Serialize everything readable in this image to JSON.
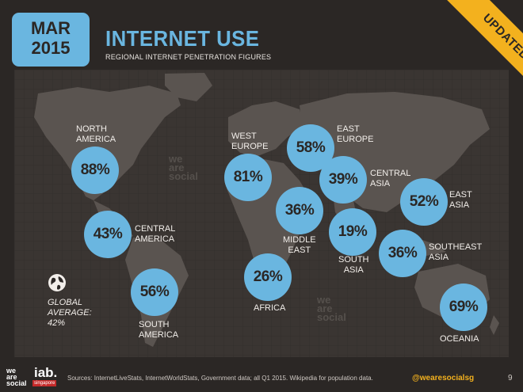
{
  "header": {
    "month": "MAR",
    "year": "2015",
    "title": "INTERNET USE",
    "subtitle": "REGIONAL INTERNET PENETRATION FIGURES",
    "ribbon": "UPDATED"
  },
  "regions": [
    {
      "id": "north-america",
      "name_line1": "NORTH",
      "name_line2": "AMERICA",
      "value": "88%"
    },
    {
      "id": "central-america",
      "name_line1": "CENTRAL",
      "name_line2": "AMERICA",
      "value": "43%"
    },
    {
      "id": "south-america",
      "name_line1": "SOUTH",
      "name_line2": "AMERICA",
      "value": "56%"
    },
    {
      "id": "west-europe",
      "name_line1": "WEST",
      "name_line2": "EUROPE",
      "value": "81%"
    },
    {
      "id": "east-europe",
      "name_line1": "EAST",
      "name_line2": "EUROPE",
      "value": "58%"
    },
    {
      "id": "central-asia",
      "name_line1": "CENTRAL",
      "name_line2": "ASIA",
      "value": "39%"
    },
    {
      "id": "middle-east",
      "name_line1": "MIDDLE",
      "name_line2": "EAST",
      "value": "36%"
    },
    {
      "id": "east-asia",
      "name_line1": "EAST",
      "name_line2": "ASIA",
      "value": "52%"
    },
    {
      "id": "south-asia",
      "name_line1": "SOUTH",
      "name_line2": "ASIA",
      "value": "19%"
    },
    {
      "id": "southeast-asia",
      "name_line1": "SOUTHEAST",
      "name_line2": "ASIA",
      "value": "36%"
    },
    {
      "id": "africa",
      "name_line1": "AFRICA",
      "name_line2": "",
      "value": "26%"
    },
    {
      "id": "oceania",
      "name_line1": "OCEANIA",
      "name_line2": "",
      "value": "69%"
    }
  ],
  "global": {
    "line1": "GLOBAL",
    "line2": "AVERAGE:",
    "value": "42%"
  },
  "watermark": {
    "line1": "we",
    "line2": "are",
    "line3": "social"
  },
  "footer": {
    "logo_line1": "we",
    "logo_line2": "are",
    "logo_line3": "social",
    "iab": "iab.",
    "iab_sub": "singapore",
    "sources": "Sources: InternetLiveStats, InternetWorldStats, Government data; all Q1 2015. Wikipedia for population data.",
    "handle": "@wearesocialsg",
    "page": "9"
  },
  "colors": {
    "background": "#2b2725",
    "map_panel": "#3a3532",
    "bubble": "#6ab6e0",
    "ribbon": "#f3b11e",
    "handle": "#f3b11e"
  }
}
